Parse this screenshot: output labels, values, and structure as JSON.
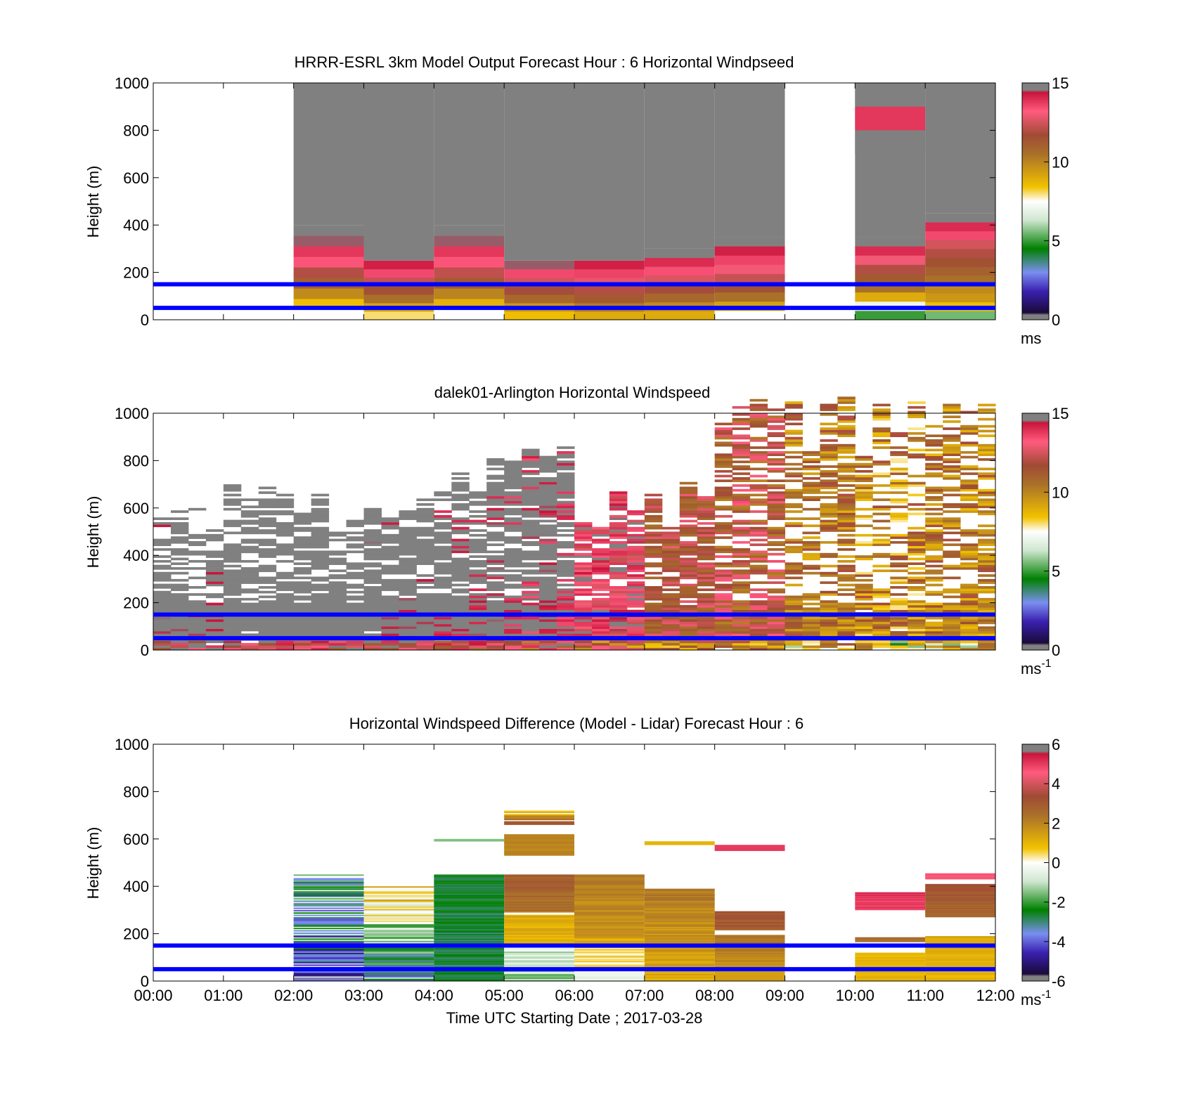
{
  "chart_data": [
    {
      "type": "heatmap",
      "title": "HRRR-ESRL 3km Model Output   Forecast Hour : 6 Horizontal Windpseed",
      "ylabel": "Height (m)",
      "xlabel": "",
      "xlim": [
        0,
        12
      ],
      "ylim": [
        0,
        1000
      ],
      "x_tick_labels": [
        "00:00",
        "01:00",
        "02:00",
        "03:00",
        "04:00",
        "05:00",
        "06:00",
        "07:00",
        "08:00",
        "09:00",
        "10:00",
        "11:00",
        "12:00"
      ],
      "show_x_tick_labels": false,
      "y_ticks": [
        0,
        200,
        400,
        600,
        800,
        1000
      ],
      "colorbar": {
        "min": 0,
        "max": 15,
        "ticks": [
          0,
          5,
          10,
          15
        ],
        "unit": "ms",
        "unit_sup": ""
      },
      "reference_lines_m": [
        50,
        150
      ],
      "columns": [
        {
          "x0": 2,
          "x1": 3,
          "top": 400,
          "profile": [
            7.5,
            8.5,
            9.8,
            11.0,
            12.0,
            13.3,
            13.8,
            14.5,
            14.8
          ]
        },
        {
          "x0": 3,
          "x1": 4,
          "top": 250,
          "profile": [
            8.0,
            9.2,
            10.5,
            11.5,
            12.3,
            13.5,
            14.2
          ]
        },
        {
          "x0": 4,
          "x1": 5,
          "top": 400,
          "profile": [
            7.5,
            8.8,
            10.0,
            11.2,
            12.2,
            13.3,
            13.8,
            14.5,
            14.8
          ]
        },
        {
          "x0": 5,
          "x1": 6,
          "top": 250,
          "profile": [
            8.5,
            9.5,
            10.8,
            11.8,
            12.5,
            13.5,
            14.5
          ]
        },
        {
          "x0": 6,
          "x1": 7,
          "top": 250,
          "profile": [
            9.0,
            10.2,
            11.2,
            12.0,
            12.8,
            13.6,
            14.2
          ]
        },
        {
          "x0": 7,
          "x1": 8,
          "top": 300,
          "profile": [
            9.0,
            9.8,
            10.8,
            11.8,
            12.6,
            13.4,
            14.0,
            14.6
          ]
        },
        {
          "x0": 8,
          "x1": 9,
          "top": 350,
          "profile": [
            7.5,
            9.2,
            10.5,
            11.5,
            12.3,
            13.0,
            13.6,
            14.2,
            14.8
          ]
        },
        {
          "x0": 10,
          "x1": 11,
          "top": 1000,
          "profile": [
            5.0,
            7.0,
            9.0,
            10.5,
            11.2,
            12.0,
            13.0,
            14.0,
            14.6
          ],
          "upper_profile_top": 350,
          "upper": [
            {
              "y0": 700,
              "y1": 800,
              "v": 14.6
            },
            {
              "y0": 800,
              "y1": 900,
              "v": 13.8
            },
            {
              "y0": 900,
              "y1": 1000,
              "v": 14.6
            }
          ]
        },
        {
          "x0": 11,
          "x1": 12,
          "top": 450,
          "profile": [
            5.5,
            8.5,
            9.5,
            9.8,
            10.5,
            11.0,
            11.5,
            12.0,
            12.5,
            13.5,
            14.0,
            14.6
          ]
        }
      ],
      "saturated_above_profile": true
    },
    {
      "type": "heatmap",
      "title": "dalek01-Arlington  Horizontal Windspeed",
      "ylabel": "Height (m)",
      "xlabel": "",
      "xlim": [
        0,
        12
      ],
      "ylim": [
        0,
        1000
      ],
      "x_tick_labels": [
        "00:00",
        "01:00",
        "02:00",
        "03:00",
        "04:00",
        "05:00",
        "06:00",
        "07:00",
        "08:00",
        "09:00",
        "10:00",
        "11:00",
        "12:00"
      ],
      "show_x_tick_labels": false,
      "y_ticks": [
        0,
        200,
        400,
        600,
        800,
        1000
      ],
      "colorbar": {
        "min": 0,
        "max": 15,
        "ticks": [
          0,
          5,
          10,
          15
        ],
        "unit": "ms",
        "unit_sup": "-1"
      },
      "reference_lines_m": [
        50,
        150
      ],
      "column_width_h": 0.25,
      "time_ranges": [
        {
          "from": 0,
          "to": 1,
          "mean_top": 520,
          "speed_low": 13.5,
          "speed_high": 16,
          "fill": 0.55
        },
        {
          "from": 1,
          "to": 2,
          "mean_top": 600,
          "speed_low": 14,
          "speed_high": 16,
          "fill": 0.6
        },
        {
          "from": 2,
          "to": 3,
          "mean_top": 560,
          "speed_low": 14,
          "speed_high": 16,
          "fill": 0.7
        },
        {
          "from": 3,
          "to": 4,
          "mean_top": 610,
          "speed_low": 13.5,
          "speed_high": 16,
          "fill": 0.75
        },
        {
          "from": 4,
          "to": 5,
          "mean_top": 730,
          "speed_low": 13,
          "speed_high": 16,
          "fill": 0.75
        },
        {
          "from": 5,
          "to": 6,
          "mean_top": 760,
          "speed_low": 12.5,
          "speed_high": 15.5,
          "fill": 0.85
        },
        {
          "from": 6,
          "to": 7,
          "mean_top": 560,
          "speed_low": 11,
          "speed_high": 14.8,
          "fill": 0.85
        },
        {
          "from": 7,
          "to": 8,
          "mean_top": 600,
          "speed_low": 9.5,
          "speed_high": 13,
          "fill": 0.75
        },
        {
          "from": 8,
          "to": 9,
          "mean_top": 960,
          "speed_low": 8.5,
          "speed_high": 13.5,
          "fill": 0.6
        },
        {
          "from": 9,
          "to": 10,
          "mean_top": 960,
          "speed_low": 7.5,
          "speed_high": 12,
          "fill": 0.55
        },
        {
          "from": 10,
          "to": 11,
          "mean_top": 960,
          "speed_low": 6,
          "speed_high": 12,
          "fill": 0.5
        },
        {
          "from": 11,
          "to": 12,
          "mean_top": 960,
          "speed_low": 7,
          "speed_high": 12,
          "fill": 0.55
        }
      ]
    },
    {
      "type": "heatmap",
      "title": "Horizontal Windspeed Difference (Model - Lidar) Forecast Hour : 6",
      "ylabel": "Height (m)",
      "xlabel": "Time UTC  Starting Date ; 2017-03-28",
      "xlim": [
        0,
        12
      ],
      "ylim": [
        0,
        1000
      ],
      "x_tick_labels": [
        "00:00",
        "01:00",
        "02:00",
        "03:00",
        "04:00",
        "05:00",
        "06:00",
        "07:00",
        "08:00",
        "09:00",
        "10:00",
        "11:00",
        "12:00"
      ],
      "show_x_tick_labels": true,
      "y_ticks": [
        0,
        200,
        400,
        600,
        800,
        1000
      ],
      "colorbar": {
        "min": -6,
        "max": 6,
        "ticks": [
          -6,
          -4,
          -2,
          0,
          2,
          4,
          6
        ],
        "unit": "ms",
        "unit_sup": "-1"
      },
      "reference_lines_m": [
        50,
        150
      ],
      "segments": [
        {
          "x0": 2,
          "x1": 3,
          "y0": 0,
          "y1": 450,
          "v_bottom": -4.5,
          "v_top": -2.5,
          "noise": 1.4,
          "gaps": 0.25
        },
        {
          "x0": 3,
          "x1": 4,
          "y0": 0,
          "y1": 400,
          "v_bottom": -3.5,
          "v_top": 1.0,
          "noise": 1.2,
          "gaps": 0.1
        },
        {
          "x0": 4,
          "x1": 5,
          "y0": 0,
          "y1": 450,
          "v_bottom": -2.8,
          "v_top": -2.6,
          "noise": 0.4,
          "gaps": 0.0
        },
        {
          "x0": 4,
          "x1": 5,
          "y0": 590,
          "y1": 600,
          "v_bottom": -1.5,
          "v_top": -1.5,
          "noise": 0,
          "gaps": 0.0
        },
        {
          "x0": 5,
          "x1": 6,
          "y0": 0,
          "y1": 150,
          "v_bottom": -1.5,
          "v_top": -0.5,
          "noise": 0.8,
          "gaps": 0.0
        },
        {
          "x0": 5,
          "x1": 6,
          "y0": 150,
          "y1": 280,
          "v_bottom": 1.0,
          "v_top": 1.2,
          "noise": 0.4,
          "gaps": 0.0
        },
        {
          "x0": 5,
          "x1": 6,
          "y0": 290,
          "y1": 450,
          "v_bottom": 2.3,
          "v_top": 3.0,
          "noise": 0.4,
          "gaps": 0.0
        },
        {
          "x0": 5,
          "x1": 6,
          "y0": 530,
          "y1": 620,
          "v_bottom": 2.0,
          "v_top": 2.0,
          "noise": 0.2,
          "gaps": 0.0
        },
        {
          "x0": 5,
          "x1": 6,
          "y0": 660,
          "y1": 720,
          "v_bottom": 3.0,
          "v_top": 0.5,
          "noise": 0.6,
          "gaps": 0.2
        },
        {
          "x0": 6,
          "x1": 7,
          "y0": 0,
          "y1": 180,
          "v_bottom": -0.5,
          "v_top": 1.0,
          "noise": 0.6,
          "gaps": 0.0
        },
        {
          "x0": 6,
          "x1": 7,
          "y0": 180,
          "y1": 450,
          "v_bottom": 1.6,
          "v_top": 2.2,
          "noise": 0.3,
          "gaps": 0.0
        },
        {
          "x0": 7,
          "x1": 8,
          "y0": 0,
          "y1": 390,
          "v_bottom": 1.2,
          "v_top": 2.2,
          "noise": 0.4,
          "gaps": 0.0
        },
        {
          "x0": 7,
          "x1": 8,
          "y0": 575,
          "y1": 590,
          "v_bottom": 1.0,
          "v_top": 1.0,
          "noise": 0,
          "gaps": 0.0
        },
        {
          "x0": 8,
          "x1": 9,
          "y0": 0,
          "y1": 195,
          "v_bottom": 1.3,
          "v_top": 2.5,
          "noise": 0.3,
          "gaps": 0.0
        },
        {
          "x0": 8,
          "x1": 9,
          "y0": 215,
          "y1": 295,
          "v_bottom": 2.8,
          "v_top": 3.2,
          "noise": 0.3,
          "gaps": 0.0
        },
        {
          "x0": 8,
          "x1": 9,
          "y0": 550,
          "y1": 575,
          "v_bottom": 5.0,
          "v_top": 5.0,
          "noise": 0,
          "gaps": 0.0
        },
        {
          "x0": 10,
          "x1": 11,
          "y0": 0,
          "y1": 120,
          "v_bottom": 1.0,
          "v_top": 1.0,
          "noise": 0.2,
          "gaps": 0.0
        },
        {
          "x0": 10,
          "x1": 11,
          "y0": 165,
          "y1": 185,
          "v_bottom": 2.5,
          "v_top": 2.5,
          "noise": 0.3,
          "gaps": 0.0
        },
        {
          "x0": 10,
          "x1": 11,
          "y0": 300,
          "y1": 375,
          "v_bottom": 4.8,
          "v_top": 5.2,
          "noise": 0.3,
          "gaps": 0.0
        },
        {
          "x0": 11,
          "x1": 12,
          "y0": 0,
          "y1": 190,
          "v_bottom": 0.9,
          "v_top": 1.2,
          "noise": 0.2,
          "gaps": 0.0
        },
        {
          "x0": 11,
          "x1": 12,
          "y0": 270,
          "y1": 410,
          "v_bottom": 2.5,
          "v_top": 3.3,
          "noise": 0.3,
          "gaps": 0.0
        },
        {
          "x0": 11,
          "x1": 12,
          "y0": 430,
          "y1": 455,
          "v_bottom": 4.5,
          "v_top": 5.0,
          "noise": 0.2,
          "gaps": 0.0
        }
      ]
    }
  ],
  "colors": {
    "reference_line": "#0000ff",
    "saturated": "#808080",
    "colormap_stops": [
      "#808080",
      "#1a0a3a",
      "#3a20b0",
      "#7a8ff0",
      "#008000",
      "#cfe6cf",
      "#ffffff",
      "#f2c200",
      "#a9702a",
      "#a04b35",
      "#ff5b7e",
      "#c8143a",
      "#808080"
    ]
  }
}
